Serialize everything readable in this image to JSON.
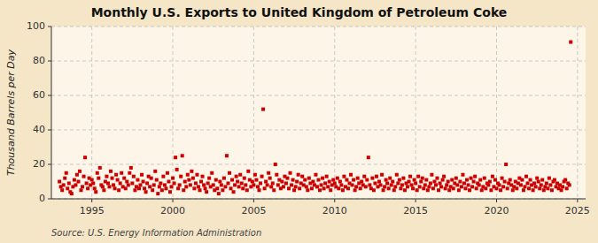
{
  "chart_data": {
    "type": "scatter",
    "title": "Monthly U.S. Exports to United Kingdom of Petroleum Coke",
    "y_label": "Thousand Barrels per Day",
    "annotations": [
      "Source: U.S. Energy Information Administration"
    ],
    "color": "#cc0000",
    "marker": "square",
    "grid": true,
    "xlim": [
      1992.5,
      2025.5
    ],
    "xticks": [
      1995,
      2000,
      2005,
      2010,
      2015,
      2020,
      2025
    ],
    "ylim": [
      0,
      100
    ],
    "yticks": [
      0,
      20,
      40,
      60,
      80,
      100
    ],
    "x": [
      1993.0,
      1993.083,
      1993.167,
      1993.25,
      1993.333,
      1993.417,
      1993.5,
      1993.583,
      1993.667,
      1993.75,
      1993.833,
      1993.917,
      1994.0,
      1994.083,
      1994.167,
      1994.25,
      1994.333,
      1994.417,
      1994.5,
      1994.583,
      1994.667,
      1994.75,
      1994.833,
      1994.917,
      1995.0,
      1995.083,
      1995.167,
      1995.25,
      1995.333,
      1995.417,
      1995.5,
      1995.583,
      1995.667,
      1995.75,
      1995.833,
      1995.917,
      1996.0,
      1996.083,
      1996.167,
      1996.25,
      1996.333,
      1996.417,
      1996.5,
      1996.583,
      1996.667,
      1996.75,
      1996.833,
      1996.917,
      1997.0,
      1997.083,
      1997.167,
      1997.25,
      1997.333,
      1997.417,
      1997.5,
      1997.583,
      1997.667,
      1997.75,
      1997.833,
      1997.917,
      1998.0,
      1998.083,
      1998.167,
      1998.25,
      1998.333,
      1998.417,
      1998.5,
      1998.583,
      1998.667,
      1998.75,
      1998.833,
      1998.917,
      1999.0,
      1999.083,
      1999.167,
      1999.25,
      1999.333,
      1999.417,
      1999.5,
      1999.583,
      1999.667,
      1999.75,
      1999.833,
      1999.917,
      2000.0,
      2000.083,
      2000.167,
      2000.25,
      2000.333,
      2000.417,
      2000.5,
      2000.583,
      2000.667,
      2000.75,
      2000.833,
      2000.917,
      2001.0,
      2001.083,
      2001.167,
      2001.25,
      2001.333,
      2001.417,
      2001.5,
      2001.583,
      2001.667,
      2001.75,
      2001.833,
      2001.917,
      2002.0,
      2002.083,
      2002.167,
      2002.25,
      2002.333,
      2002.417,
      2002.5,
      2002.583,
      2002.667,
      2002.75,
      2002.833,
      2002.917,
      2003.0,
      2003.083,
      2003.167,
      2003.25,
      2003.333,
      2003.417,
      2003.5,
      2003.583,
      2003.667,
      2003.75,
      2003.833,
      2003.917,
      2004.0,
      2004.083,
      2004.167,
      2004.25,
      2004.333,
      2004.417,
      2004.5,
      2004.583,
      2004.667,
      2004.75,
      2004.833,
      2004.917,
      2005.0,
      2005.083,
      2005.167,
      2005.25,
      2005.333,
      2005.417,
      2005.5,
      2005.583,
      2005.667,
      2005.75,
      2005.833,
      2005.917,
      2006.0,
      2006.083,
      2006.167,
      2006.25,
      2006.333,
      2006.417,
      2006.5,
      2006.583,
      2006.667,
      2006.75,
      2006.833,
      2006.917,
      2007.0,
      2007.083,
      2007.167,
      2007.25,
      2007.333,
      2007.417,
      2007.5,
      2007.583,
      2007.667,
      2007.75,
      2007.833,
      2007.917,
      2008.0,
      2008.083,
      2008.167,
      2008.25,
      2008.333,
      2008.417,
      2008.5,
      2008.583,
      2008.667,
      2008.75,
      2008.833,
      2008.917,
      2009.0,
      2009.083,
      2009.167,
      2009.25,
      2009.333,
      2009.417,
      2009.5,
      2009.583,
      2009.667,
      2009.75,
      2009.833,
      2009.917,
      2010.0,
      2010.083,
      2010.167,
      2010.25,
      2010.333,
      2010.417,
      2010.5,
      2010.583,
      2010.667,
      2010.75,
      2010.833,
      2010.917,
      2011.0,
      2011.083,
      2011.167,
      2011.25,
      2011.333,
      2011.417,
      2011.5,
      2011.583,
      2011.667,
      2011.75,
      2011.833,
      2011.917,
      2012.0,
      2012.083,
      2012.167,
      2012.25,
      2012.333,
      2012.417,
      2012.5,
      2012.583,
      2012.667,
      2012.75,
      2012.833,
      2012.917,
      2013.0,
      2013.083,
      2013.167,
      2013.25,
      2013.333,
      2013.417,
      2013.5,
      2013.583,
      2013.667,
      2013.75,
      2013.833,
      2013.917,
      2014.0,
      2014.083,
      2014.167,
      2014.25,
      2014.333,
      2014.417,
      2014.5,
      2014.583,
      2014.667,
      2014.75,
      2014.833,
      2014.917,
      2015.0,
      2015.083,
      2015.167,
      2015.25,
      2015.333,
      2015.417,
      2015.5,
      2015.583,
      2015.667,
      2015.75,
      2015.833,
      2015.917,
      2016.0,
      2016.083,
      2016.167,
      2016.25,
      2016.333,
      2016.417,
      2016.5,
      2016.583,
      2016.667,
      2016.75,
      2016.833,
      2016.917,
      2017.0,
      2017.083,
      2017.167,
      2017.25,
      2017.333,
      2017.417,
      2017.5,
      2017.583,
      2017.667,
      2017.75,
      2017.833,
      2017.917,
      2018.0,
      2018.083,
      2018.167,
      2018.25,
      2018.333,
      2018.417,
      2018.5,
      2018.583,
      2018.667,
      2018.75,
      2018.833,
      2018.917,
      2019.0,
      2019.083,
      2019.167,
      2019.25,
      2019.333,
      2019.417,
      2019.5,
      2019.583,
      2019.667,
      2019.75,
      2019.833,
      2019.917,
      2020.0,
      2020.083,
      2020.167,
      2020.25,
      2020.333,
      2020.417,
      2020.5,
      2020.583,
      2020.667,
      2020.75,
      2020.833,
      2020.917,
      2021.0,
      2021.083,
      2021.167,
      2021.25,
      2021.333,
      2021.417,
      2021.5,
      2021.583,
      2021.667,
      2021.75,
      2021.833,
      2021.917,
      2022.0,
      2022.083,
      2022.167,
      2022.25,
      2022.333,
      2022.417,
      2022.5,
      2022.583,
      2022.667,
      2022.75,
      2022.833,
      2022.917,
      2023.0,
      2023.083,
      2023.167,
      2023.25,
      2023.333,
      2023.417,
      2023.5,
      2023.583,
      2023.667,
      2023.75,
      2023.833,
      2023.917,
      2024.0,
      2024.083,
      2024.167,
      2024.25,
      2024.333,
      2024.417,
      2024.5,
      2024.583
    ],
    "values": [
      10,
      7,
      5,
      8,
      12,
      15,
      6,
      9,
      4,
      3,
      7,
      11,
      8,
      14,
      10,
      16,
      5,
      7,
      13,
      24,
      9,
      6,
      12,
      8,
      11,
      9,
      6,
      4,
      15,
      12,
      18,
      8,
      7,
      5,
      10,
      13,
      9,
      7,
      16,
      12,
      8,
      6,
      14,
      11,
      5,
      9,
      15,
      7,
      12,
      6,
      10,
      8,
      15,
      18,
      9,
      13,
      5,
      7,
      11,
      6,
      8,
      14,
      10,
      6,
      4,
      9,
      13,
      7,
      12,
      5,
      8,
      16,
      11,
      3,
      7,
      9,
      5,
      13,
      8,
      6,
      15,
      10,
      4,
      7,
      12,
      9,
      24,
      17,
      6,
      8,
      13,
      25,
      5,
      10,
      7,
      14,
      11,
      8,
      16,
      12,
      6,
      9,
      14,
      7,
      5,
      10,
      13,
      8,
      6,
      4,
      9,
      12,
      7,
      15,
      8,
      5,
      11,
      6,
      3,
      10,
      8,
      5,
      12,
      7,
      25,
      9,
      15,
      6,
      11,
      4,
      8,
      13,
      10,
      7,
      14,
      9,
      6,
      12,
      8,
      5,
      16,
      11,
      7,
      10,
      8,
      14,
      11,
      7,
      5,
      9,
      13,
      52,
      6,
      10,
      8,
      15,
      12,
      7,
      9,
      5,
      20,
      14,
      8,
      11,
      6,
      10,
      7,
      13,
      9,
      12,
      6,
      15,
      8,
      11,
      5,
      7,
      10,
      14,
      6,
      9,
      13,
      8,
      11,
      7,
      5,
      12,
      9,
      6,
      10,
      8,
      14,
      7,
      11,
      5,
      8,
      12,
      6,
      9,
      13,
      7,
      10,
      5,
      8,
      11,
      9,
      7,
      12,
      6,
      10,
      8,
      5,
      13,
      7,
      11,
      6,
      9,
      14,
      8,
      11,
      5,
      7,
      12,
      9,
      6,
      10,
      8,
      13,
      7,
      11,
      24,
      8,
      6,
      12,
      5,
      9,
      13,
      7,
      10,
      8,
      14,
      5,
      7,
      11,
      9,
      6,
      12,
      8,
      10,
      5,
      7,
      14,
      9,
      11,
      6,
      8,
      12,
      5,
      9,
      7,
      10,
      13,
      8,
      6,
      11,
      9,
      5,
      13,
      7,
      10,
      12,
      6,
      8,
      11,
      5,
      7,
      9,
      14,
      6,
      10,
      8,
      12,
      5,
      9,
      7,
      11,
      13,
      6,
      8,
      10,
      5,
      7,
      11,
      6,
      9,
      12,
      8,
      5,
      10,
      7,
      14,
      9,
      6,
      11,
      8,
      5,
      12,
      7,
      10,
      13,
      6,
      9,
      8,
      11,
      5,
      7,
      12,
      6,
      9,
      8,
      10,
      5,
      13,
      7,
      11,
      6,
      9,
      8,
      5,
      12,
      7,
      10,
      20,
      6,
      9,
      11,
      8,
      5,
      7,
      10,
      6,
      9,
      12,
      8,
      11,
      5,
      7,
      13,
      9,
      6,
      11,
      8,
      5,
      9,
      7,
      12,
      10,
      6,
      8,
      11,
      5,
      7,
      9,
      6,
      12,
      8,
      5,
      10,
      11,
      7,
      9,
      6,
      8,
      5,
      7,
      10,
      11,
      6,
      9,
      8,
      91
    ]
  }
}
